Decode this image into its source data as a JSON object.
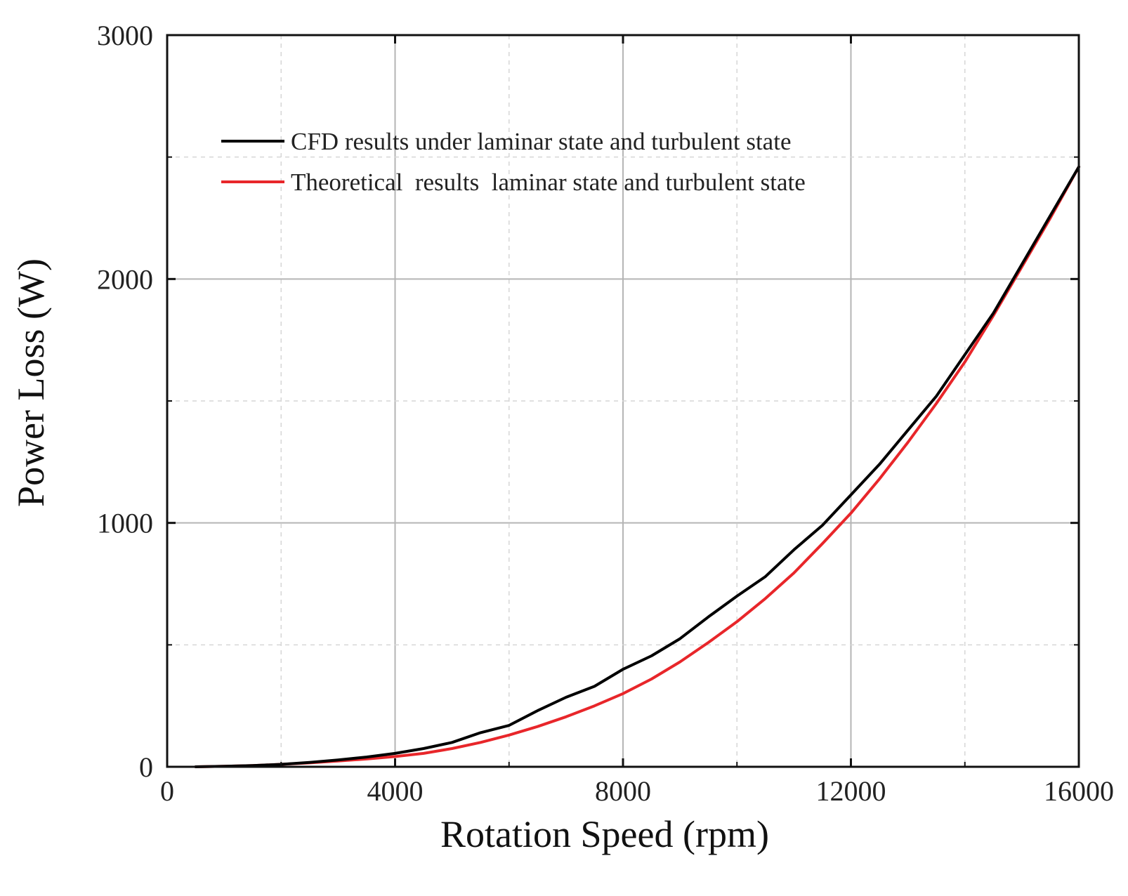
{
  "chart_data": {
    "type": "line",
    "title": "",
    "xlabel": "Rotation Speed (rpm)",
    "ylabel": "Power Loss (W)",
    "xlim": [
      0,
      16000
    ],
    "ylim": [
      0,
      3000
    ],
    "x_ticks": [
      0,
      4000,
      8000,
      12000,
      16000
    ],
    "x_tick_labels": [
      "0",
      "4000",
      "8000",
      "12000",
      "16000"
    ],
    "y_ticks": [
      0,
      1000,
      2000,
      3000
    ],
    "y_tick_labels": [
      "0",
      "1000",
      "2000",
      "3000"
    ],
    "grid": true,
    "legend_position": "top-left",
    "series": [
      {
        "name": "CFD results under laminar state and turbulent state",
        "color": "#000000",
        "x": [
          500,
          1000,
          1500,
          2000,
          2500,
          3000,
          3500,
          4000,
          4500,
          5000,
          5500,
          6000,
          6500,
          7000,
          7500,
          8000,
          8500,
          9000,
          9500,
          10000,
          10500,
          11000,
          11500,
          12000,
          12500,
          13000,
          13500,
          14000,
          14500,
          15000,
          15500,
          16000
        ],
        "y": [
          0,
          2,
          5,
          10,
          18,
          28,
          40,
          55,
          75,
          100,
          140,
          170,
          230,
          285,
          330,
          400,
          455,
          525,
          615,
          700,
          780,
          890,
          990,
          1115,
          1240,
          1380,
          1520,
          1690,
          1860,
          2060,
          2260,
          2460
        ]
      },
      {
        "name": "Theoretical  results  laminar state and turbulent state",
        "color": "#e8262a",
        "x": [
          500,
          1000,
          1500,
          2000,
          2500,
          3000,
          3500,
          4000,
          4500,
          5000,
          5500,
          6000,
          6500,
          7000,
          7500,
          8000,
          8500,
          9000,
          9500,
          10000,
          10500,
          11000,
          11500,
          12000,
          12500,
          13000,
          13500,
          14000,
          14500,
          15000,
          15500,
          16000
        ],
        "y": [
          0,
          2,
          5,
          10,
          16,
          24,
          32,
          42,
          55,
          75,
          100,
          130,
          165,
          205,
          250,
          300,
          360,
          430,
          510,
          595,
          690,
          795,
          915,
          1040,
          1180,
          1330,
          1490,
          1660,
          1850,
          2050,
          2250,
          2460
        ]
      }
    ]
  }
}
